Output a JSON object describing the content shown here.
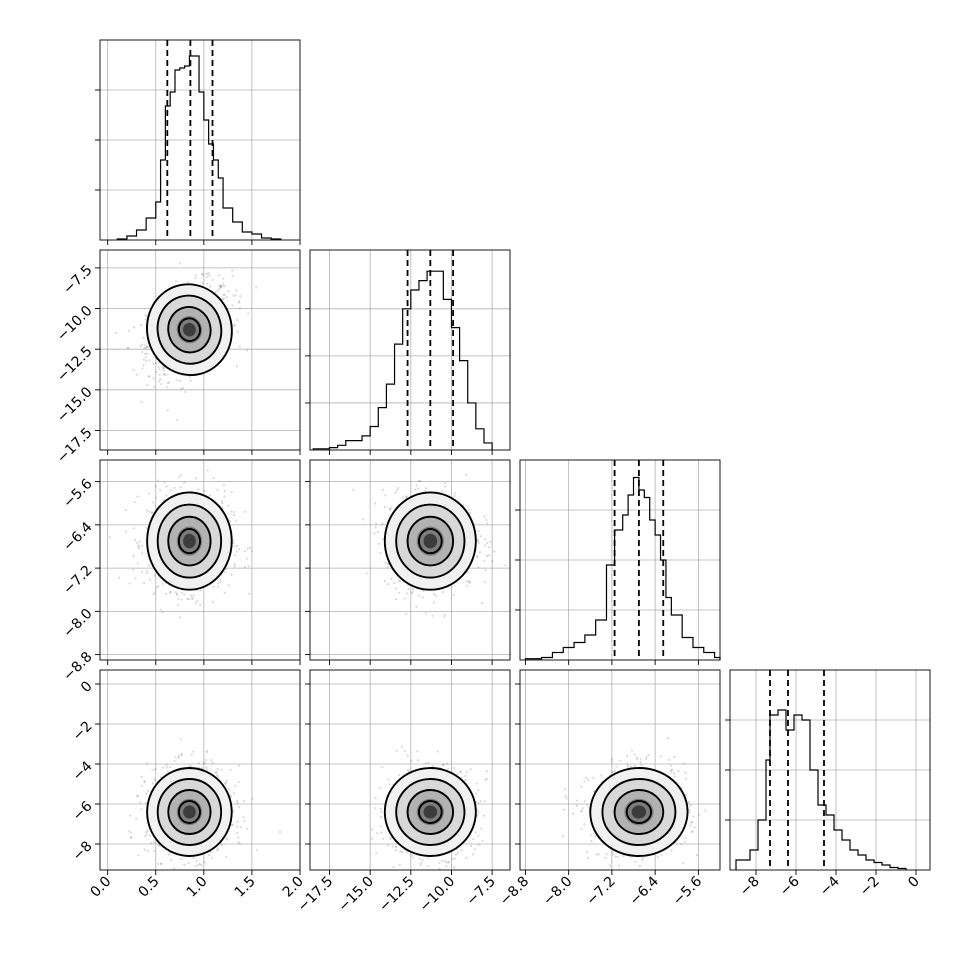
{
  "chart_data": {
    "type": "corner",
    "parameters": [
      {
        "range": [
          -0.08,
          2.0
        ],
        "ticks": [
          0.0,
          0.5,
          1.0,
          1.5,
          2.0
        ],
        "tick_labels": [
          "0.0",
          "0.5",
          "1.0",
          "1.5",
          "2.0"
        ],
        "quantiles": [
          0.62,
          0.86,
          1.09
        ],
        "hist": {
          "edges": [
            0.1,
            0.2,
            0.3,
            0.4,
            0.5,
            0.55,
            0.6,
            0.65,
            0.7,
            0.75,
            0.8,
            0.85,
            0.9,
            0.95,
            1.0,
            1.05,
            1.1,
            1.15,
            1.2,
            1.3,
            1.4,
            1.5,
            1.6,
            1.7,
            1.8
          ],
          "counts": [
            0.5,
            2,
            5,
            11,
            19,
            40,
            67,
            74,
            85,
            86,
            87,
            92,
            92,
            74,
            60,
            48,
            40,
            31,
            16,
            9,
            4,
            3,
            1,
            0.5
          ]
        },
        "hist_ymax": 100,
        "hist_yticks": [
          25,
          50,
          75
        ]
      },
      {
        "range": [
          -18.7,
          -6.4
        ],
        "ticks": [
          -17.5,
          -15.0,
          -12.5,
          -10.0,
          -7.5
        ],
        "tick_labels": [
          "−17.5",
          "−15.0",
          "−12.5",
          "−10.0",
          "−7.5"
        ],
        "quantiles": [
          -12.7,
          -11.3,
          -9.9
        ],
        "hist": {
          "edges": [
            -18.5,
            -17.5,
            -17.0,
            -16.5,
            -15.5,
            -15.0,
            -14.5,
            -14.0,
            -13.5,
            -13.0,
            -12.5,
            -12.0,
            -11.5,
            -11.0,
            -10.5,
            -10.0,
            -9.5,
            -9.0,
            -8.5,
            -8.0,
            -7.5
          ],
          "counts": [
            0.5,
            1,
            2,
            4,
            6,
            10,
            18,
            28,
            45,
            60,
            68,
            72,
            76,
            76,
            64,
            52,
            38,
            20,
            9,
            3
          ]
        },
        "hist_ymax": 85,
        "hist_yticks": [
          20,
          40,
          60
        ]
      },
      {
        "range": [
          -8.9,
          -5.2
        ],
        "ticks": [
          -8.8,
          -8.0,
          -7.2,
          -6.4,
          -5.6
        ],
        "tick_labels": [
          "−8.8",
          "−8.0",
          "−7.2",
          "−6.4",
          "−5.6"
        ],
        "quantiles": [
          -7.15,
          -6.7,
          -6.25
        ],
        "hist": {
          "edges": [
            -8.8,
            -8.5,
            -8.3,
            -8.1,
            -7.9,
            -7.7,
            -7.5,
            -7.3,
            -7.15,
            -7.0,
            -6.9,
            -6.8,
            -6.7,
            -6.6,
            -6.5,
            -6.4,
            -6.3,
            -6.2,
            -6.1,
            -5.9,
            -5.7,
            -5.5,
            -5.3,
            -5.2
          ],
          "counts": [
            0.5,
            1,
            3,
            5,
            7,
            10,
            16,
            38,
            52,
            58,
            66,
            73,
            68,
            65,
            56,
            50,
            40,
            25,
            18,
            9,
            5,
            3,
            1
          ]
        },
        "hist_ymax": 80,
        "hist_yticks": [
          20,
          40,
          60
        ]
      },
      {
        "range": [
          -9.3,
          0.7
        ],
        "ticks": [
          -8,
          -6,
          -4,
          -2,
          0
        ],
        "tick_labels": [
          "−8",
          "−6",
          "−4",
          "−2",
          "0"
        ],
        "quantiles": [
          -7.3,
          -6.4,
          -4.6
        ],
        "hist": {
          "edges": [
            -9.0,
            -8.3,
            -7.9,
            -7.5,
            -7.3,
            -6.9,
            -6.5,
            -6.1,
            -5.7,
            -5.3,
            -4.9,
            -4.5,
            -4.1,
            -3.7,
            -3.3,
            -2.9,
            -2.5,
            -2.1,
            -1.7,
            -1.3,
            -0.9,
            -0.5
          ],
          "counts": [
            2,
            4,
            10,
            22,
            31,
            32,
            28,
            31,
            30,
            20,
            13,
            11,
            8,
            6,
            4,
            3,
            2,
            1.5,
            1,
            0.5,
            0.3
          ]
        },
        "hist_ymax": 40,
        "hist_yticks": [
          10,
          20,
          30
        ]
      }
    ],
    "pairs": [
      {
        "row": 1,
        "col": 0,
        "center": [
          0.85,
          -11.3
        ],
        "sigma": [
          0.22,
          1.4
        ],
        "rho": 0.35
      },
      {
        "row": 2,
        "col": 0,
        "center": [
          0.85,
          -6.7
        ],
        "sigma": [
          0.22,
          0.45
        ],
        "rho": 0.0
      },
      {
        "row": 2,
        "col": 1,
        "center": [
          -11.3,
          -6.7
        ],
        "sigma": [
          1.4,
          0.45
        ],
        "rho": 0.0
      },
      {
        "row": 3,
        "col": 0,
        "center": [
          0.85,
          -6.4
        ],
        "sigma": [
          0.22,
          1.1
        ],
        "rho": 0.0
      },
      {
        "row": 3,
        "col": 1,
        "center": [
          -11.3,
          -6.4
        ],
        "sigma": [
          1.4,
          1.1
        ],
        "rho": 0.05
      },
      {
        "row": 3,
        "col": 2,
        "center": [
          -6.7,
          -6.4
        ],
        "sigma": [
          0.45,
          1.1
        ],
        "rho": 0.05
      }
    ],
    "contour_levels_sigma": [
      0.5,
      1.0,
      1.5,
      2.0
    ],
    "grid": true,
    "title": "",
    "xlabel": "",
    "ylabel": ""
  }
}
